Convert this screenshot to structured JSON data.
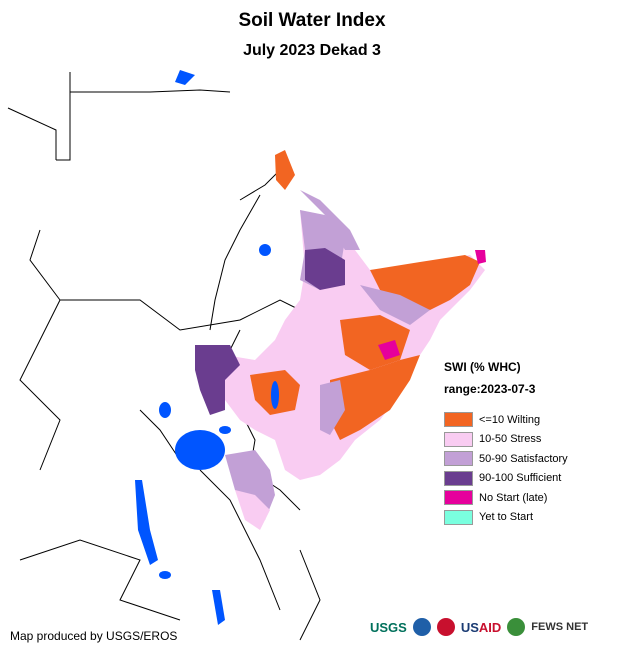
{
  "title": "Soil Water Index",
  "subtitle": "July 2023 Dekad 3",
  "legend": {
    "title": "SWI (% WHC)",
    "range": "range:2023-07-3",
    "items": [
      {
        "label": "<=10 Wilting",
        "color": "#f26522"
      },
      {
        "label": "10-50 Stress",
        "color": "#f9ccf2"
      },
      {
        "label": "50-90 Satisfactory",
        "color": "#c2a0d6"
      },
      {
        "label": "90-100 Sufficient",
        "color": "#6a3d8f"
      },
      {
        "label": "No Start (late)",
        "color": "#e6009c"
      },
      {
        "label": "Yet to Start",
        "color": "#7affdf"
      }
    ]
  },
  "credit": "Map produced by USGS/EROS",
  "logos": {
    "usgs": "USGS",
    "usaid_us": "US",
    "usaid_aid": "AID",
    "fews": "FEWS NET"
  },
  "colors": {
    "water": "#0055ff",
    "border": "#000000"
  }
}
